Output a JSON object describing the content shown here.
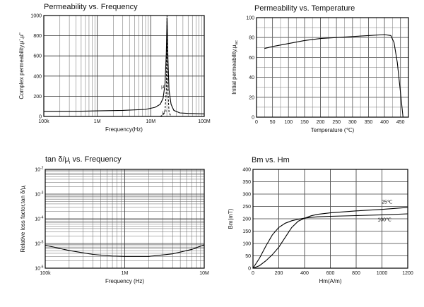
{
  "chart_data": [
    {
      "id": "perm_freq",
      "type": "line",
      "title": "Permeability vs. Frequency",
      "xlabel": "Frequency(Hz)",
      "ylabel": "Complex permeability,μ',μ\"",
      "x_scale": "log",
      "xlim": [
        100000,
        100000000
      ],
      "ylim": [
        0,
        1000
      ],
      "x_ticks": [
        {
          "value": 100000,
          "label": "100k"
        },
        {
          "value": 1000000,
          "label": "1M"
        },
        {
          "value": 10000000,
          "label": "10M"
        },
        {
          "value": 100000000,
          "label": "100M"
        }
      ],
      "y_ticks": [
        {
          "value": 0,
          "label": "0"
        },
        {
          "value": 200,
          "label": "200"
        },
        {
          "value": 400,
          "label": "400"
        },
        {
          "value": 600,
          "label": "600"
        },
        {
          "value": 800,
          "label": "800"
        },
        {
          "value": 1000,
          "label": "1000"
        }
      ],
      "grid": true,
      "series": [
        {
          "name": "μ'",
          "style": "solid",
          "x": [
            100000,
            500000,
            1000000,
            3000000,
            8000000,
            12000000,
            15000000,
            17000000,
            18500000,
            19500000,
            20200000,
            21000000,
            22000000,
            24000000,
            27000000,
            35000000,
            50000000,
            100000000
          ],
          "y": [
            50,
            52,
            55,
            60,
            70,
            90,
            120,
            180,
            320,
            620,
            980,
            560,
            260,
            120,
            60,
            35,
            30,
            25
          ]
        },
        {
          "name": "μ\"",
          "style": "dashed",
          "x": [
            15000000,
            17000000,
            18500000,
            19500000,
            20200000,
            21000000,
            22000000,
            24000000
          ],
          "y": [
            0,
            15,
            60,
            250,
            1000,
            250,
            40,
            0
          ]
        }
      ],
      "annotations": [
        {
          "text": "μ'",
          "x": 17000000,
          "y": 280
        },
        {
          "text": "μ\"",
          "x": 18000000,
          "y": 25
        }
      ]
    },
    {
      "id": "perm_temp",
      "type": "line",
      "title": "Permeability vs. Temperature",
      "xlabel": "Temperature (℃)",
      "ylabel": "Initial permeability,μ",
      "ylabel_subscript": "iac",
      "xlim": [
        0,
        475
      ],
      "ylim": [
        0,
        100
      ],
      "x_ticks": [
        {
          "value": 0,
          "label": "0"
        },
        {
          "value": 50,
          "label": "50"
        },
        {
          "value": 100,
          "label": "100"
        },
        {
          "value": 150,
          "label": "150"
        },
        {
          "value": 200,
          "label": "200"
        },
        {
          "value": 250,
          "label": "250"
        },
        {
          "value": 300,
          "label": "300"
        },
        {
          "value": 350,
          "label": "350"
        },
        {
          "value": 400,
          "label": "400"
        },
        {
          "value": 450,
          "label": "450"
        }
      ],
      "y_ticks": [
        {
          "value": 0,
          "label": "0"
        },
        {
          "value": 20,
          "label": "20"
        },
        {
          "value": 40,
          "label": "40"
        },
        {
          "value": 60,
          "label": "60"
        },
        {
          "value": 80,
          "label": "80"
        },
        {
          "value": 100,
          "label": "100"
        }
      ],
      "grid": true,
      "series": [
        {
          "x": [
            25,
            50,
            100,
            150,
            200,
            250,
            300,
            350,
            400,
            420,
            430,
            440,
            450,
            458
          ],
          "y": [
            69,
            71,
            74,
            77,
            79,
            80,
            81,
            82,
            83,
            82,
            75,
            55,
            25,
            0
          ]
        }
      ]
    },
    {
      "id": "tan_freq",
      "type": "line",
      "title": "tan δ/μ",
      "title_subscript": "i",
      "title_suffix": " vs. Frequency",
      "xlabel": "Frequency (Hz)",
      "ylabel": "Relative loss factor,tan δ/μ",
      "ylabel_subscript": "i",
      "x_scale": "log",
      "y_scale": "log",
      "xlim": [
        100000,
        10000000
      ],
      "ylim": [
        1e-06,
        0.01
      ],
      "x_ticks": [
        {
          "value": 100000,
          "label": "100k"
        },
        {
          "value": 1000000,
          "label": "1M"
        },
        {
          "value": 10000000,
          "label": "10M"
        }
      ],
      "y_ticks": [
        {
          "value": 1e-06,
          "label": "10",
          "exp": "-6"
        },
        {
          "value": 1e-05,
          "label": "10",
          "exp": "-5"
        },
        {
          "value": 0.0001,
          "label": "10",
          "exp": "-4"
        },
        {
          "value": 0.001,
          "label": "10",
          "exp": "-3"
        },
        {
          "value": 0.01,
          "label": "10",
          "exp": "-2"
        }
      ],
      "grid": true,
      "series": [
        {
          "x": [
            100000,
            200000,
            400000,
            700000,
            1000000,
            2000000,
            4000000,
            7000000,
            10000000
          ],
          "y": [
            8.5e-06,
            5.2e-06,
            3.6e-06,
            3.1e-06,
            3e-06,
            3e-06,
            3.8e-06,
            5.8e-06,
            8.8e-06
          ]
        }
      ]
    },
    {
      "id": "bm_hm",
      "type": "line",
      "title": "Bm vs. Hm",
      "xlabel": "Hm(A/m)",
      "ylabel": "Bm(mT)",
      "xlim": [
        0,
        1200
      ],
      "ylim": [
        0,
        400
      ],
      "x_ticks": [
        {
          "value": 0,
          "label": "0"
        },
        {
          "value": 200,
          "label": "200"
        },
        {
          "value": 400,
          "label": "400"
        },
        {
          "value": 600,
          "label": "600"
        },
        {
          "value": 800,
          "label": "800"
        },
        {
          "value": 1000,
          "label": "1000"
        },
        {
          "value": 1200,
          "label": "1200"
        }
      ],
      "y_ticks": [
        {
          "value": 0,
          "label": "0"
        },
        {
          "value": 50,
          "label": "50"
        },
        {
          "value": 100,
          "label": "100"
        },
        {
          "value": 150,
          "label": "150"
        },
        {
          "value": 200,
          "label": "200"
        },
        {
          "value": 250,
          "label": "250"
        },
        {
          "value": 300,
          "label": "300"
        },
        {
          "value": 350,
          "label": "350"
        },
        {
          "value": 400,
          "label": "400"
        }
      ],
      "grid": true,
      "series": [
        {
          "name": "25℃",
          "x": [
            0,
            50,
            100,
            150,
            200,
            250,
            300,
            350,
            400,
            450,
            500,
            600,
            800,
            1000,
            1200
          ],
          "y": [
            0,
            10,
            30,
            55,
            85,
            125,
            165,
            190,
            202,
            212,
            218,
            224,
            232,
            238,
            246
          ]
        },
        {
          "name": "100℃",
          "x": [
            0,
            50,
            100,
            150,
            200,
            250,
            300,
            350,
            400,
            500,
            600,
            800,
            1000,
            1200
          ],
          "y": [
            0,
            40,
            90,
            135,
            165,
            182,
            192,
            198,
            203,
            208,
            210,
            213,
            216,
            220
          ]
        }
      ],
      "annotations": [
        {
          "text": "25℃",
          "x": 1040,
          "y": 262
        },
        {
          "text": "100℃",
          "x": 1020,
          "y": 190
        }
      ]
    }
  ]
}
